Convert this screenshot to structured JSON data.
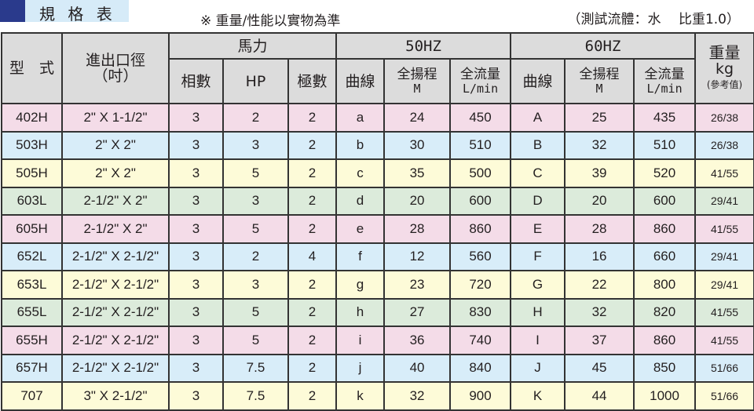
{
  "title": "規 格 表",
  "note": "※ 重量/性能以實物為準",
  "condition": "（測試流體：水　 比重1.0）",
  "headers": {
    "model": "型　式",
    "port": "進出口徑",
    "port_unit": "（吋）",
    "power": "馬力",
    "phase": "相數",
    "hp": "HP",
    "poles": "極數",
    "hz50": "50HZ",
    "hz60": "60HZ",
    "curve": "曲線",
    "head": "全揚程",
    "head_unit": "M",
    "flow": "全流量",
    "flow_unit": "L/min",
    "weight": "重量",
    "weight_unit": "kg",
    "weight_note": "(參考值)"
  },
  "row_colors": {
    "pink": "#f4dce8",
    "blue": "#d8edf9",
    "yellow": "#fdfbd8",
    "green": "#dcebdb"
  },
  "rows": [
    {
      "model": "402H",
      "port": "2\" X 1-1/2\"",
      "phase": "3",
      "hp": "2",
      "poles": "2",
      "c50": "a",
      "h50": "24",
      "f50": "450",
      "c60": "A",
      "h60": "25",
      "f60": "435",
      "weight": "26/38",
      "color": "pink"
    },
    {
      "model": "503H",
      "port": "2\" X 2\"",
      "phase": "3",
      "hp": "3",
      "poles": "2",
      "c50": "b",
      "h50": "30",
      "f50": "510",
      "c60": "B",
      "h60": "32",
      "f60": "510",
      "weight": "26/38",
      "color": "blue"
    },
    {
      "model": "505H",
      "port": "2\" X 2\"",
      "phase": "3",
      "hp": "5",
      "poles": "2",
      "c50": "c",
      "h50": "35",
      "f50": "500",
      "c60": "C",
      "h60": "39",
      "f60": "520",
      "weight": "41/55",
      "color": "yellow"
    },
    {
      "model": "603L",
      "port": "2-1/2\" X 2\"",
      "phase": "3",
      "hp": "3",
      "poles": "2",
      "c50": "d",
      "h50": "20",
      "f50": "600",
      "c60": "D",
      "h60": "20",
      "f60": "600",
      "weight": "29/41",
      "color": "green"
    },
    {
      "model": "605H",
      "port": "2-1/2\" X 2\"",
      "phase": "3",
      "hp": "5",
      "poles": "2",
      "c50": "e",
      "h50": "28",
      "f50": "860",
      "c60": "E",
      "h60": "28",
      "f60": "860",
      "weight": "41/55",
      "color": "pink"
    },
    {
      "model": "652L",
      "port": "2-1/2\" X 2-1/2\"",
      "phase": "3",
      "hp": "2",
      "poles": "4",
      "c50": "f",
      "h50": "12",
      "f50": "560",
      "c60": "F",
      "h60": "16",
      "f60": "660",
      "weight": "29/41",
      "color": "blue"
    },
    {
      "model": "653L",
      "port": "2-1/2\" X 2-1/2\"",
      "phase": "3",
      "hp": "3",
      "poles": "2",
      "c50": "g",
      "h50": "23",
      "f50": "720",
      "c60": "G",
      "h60": "22",
      "f60": "800",
      "weight": "29/41",
      "color": "yellow"
    },
    {
      "model": "655L",
      "port": "2-1/2\" X 2-1/2\"",
      "phase": "3",
      "hp": "5",
      "poles": "2",
      "c50": "h",
      "h50": "27",
      "f50": "830",
      "c60": "H",
      "h60": "32",
      "f60": "820",
      "weight": "41/55",
      "color": "green"
    },
    {
      "model": "655H",
      "port": "2-1/2\" X 2-1/2\"",
      "phase": "3",
      "hp": "5",
      "poles": "2",
      "c50": "i",
      "h50": "36",
      "f50": "740",
      "c60": "I",
      "h60": "37",
      "f60": "860",
      "weight": "41/55",
      "color": "pink"
    },
    {
      "model": "657H",
      "port": "2-1/2\" X 2-1/2\"",
      "phase": "3",
      "hp": "7.5",
      "poles": "2",
      "c50": "j",
      "h50": "40",
      "f50": "840",
      "c60": "J",
      "h60": "45",
      "f60": "850",
      "weight": "51/66",
      "color": "blue"
    },
    {
      "model": "707",
      "port": "3\" X 2-1/2\"",
      "phase": "3",
      "hp": "7.5",
      "poles": "2",
      "c50": "k",
      "h50": "32",
      "f50": "900",
      "c60": "K",
      "h60": "44",
      "f60": "1000",
      "weight": "51/66",
      "color": "yellow"
    }
  ]
}
